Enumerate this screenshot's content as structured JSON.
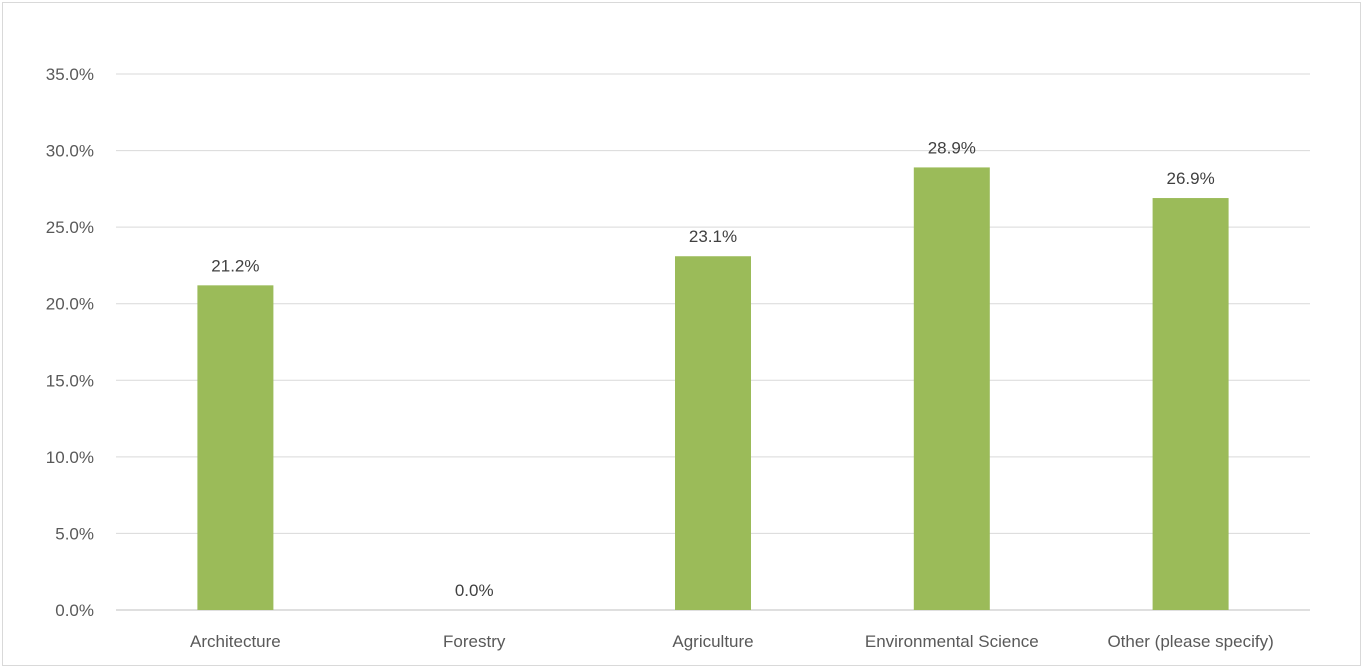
{
  "chart_data": {
    "type": "bar",
    "title": "",
    "xlabel": "",
    "ylabel": "",
    "categories": [
      "Architecture",
      "Forestry",
      "Agriculture",
      "Environmental Science",
      "Other (please specify)"
    ],
    "values": [
      21.2,
      0.0,
      23.1,
      28.9,
      26.9
    ],
    "data_labels": [
      "21.2%",
      "0.0%",
      "23.1%",
      "28.9%",
      "26.9%"
    ],
    "ylim": [
      0,
      35
    ],
    "y_ticks": [
      0,
      5,
      10,
      15,
      20,
      25,
      30,
      35
    ],
    "y_tick_labels": [
      "0.0%",
      "5.0%",
      "10.0%",
      "15.0%",
      "20.0%",
      "25.0%",
      "30.0%",
      "35.0%"
    ],
    "grid": true,
    "legend": "none",
    "bar_color": "#9bbb59"
  }
}
